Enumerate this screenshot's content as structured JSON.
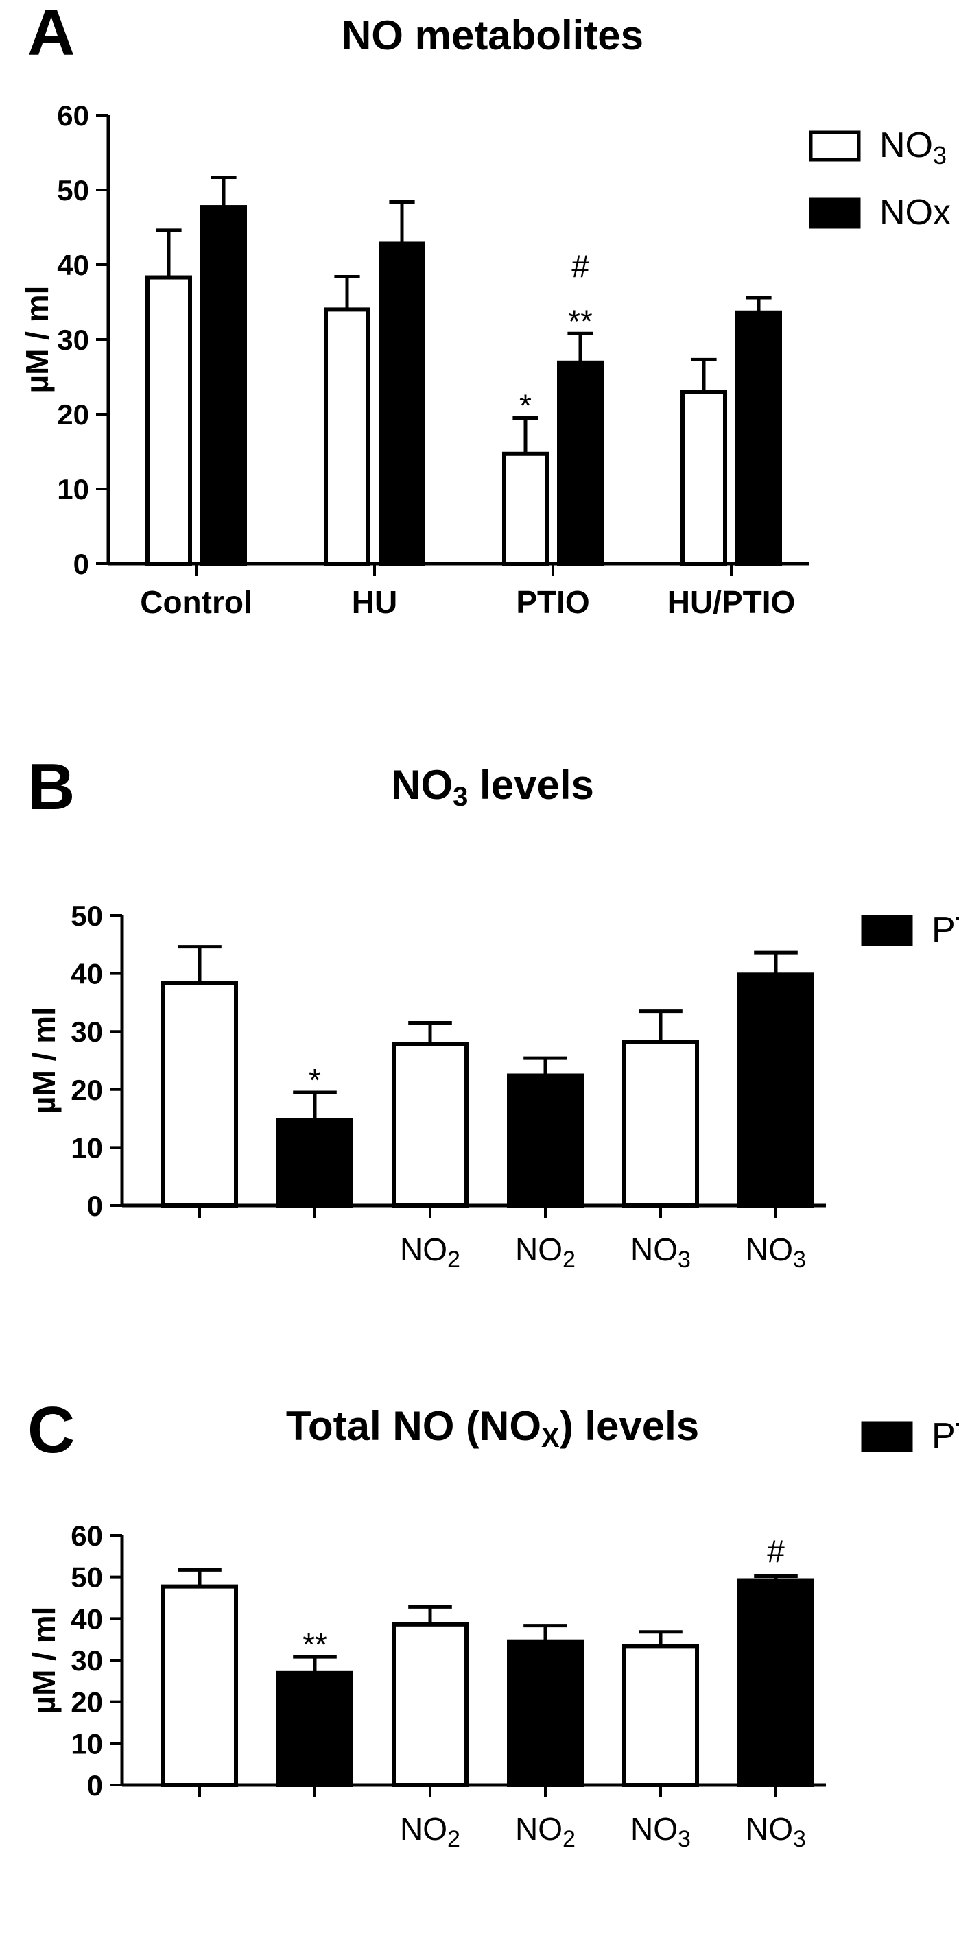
{
  "colors": {
    "filled": "#000000",
    "open": "#ffffff",
    "stroke": "#000000"
  },
  "chart_data": [
    {
      "type": "bar",
      "panel": "A",
      "title": "NO metabolites",
      "ylabel": "µM / ml",
      "ylim": [
        0,
        60
      ],
      "yticks": [
        0,
        10,
        20,
        30,
        40,
        50,
        60
      ],
      "categories": [
        "Control",
        "HU",
        "PTIO",
        "HU/PTIO"
      ],
      "series": [
        {
          "name": "NO",
          "name_sub": "3",
          "fill": "open",
          "values": [
            38.3,
            34.0,
            14.7,
            23.0
          ],
          "errors": [
            6.3,
            4.4,
            4.8,
            4.3
          ],
          "annotations": [
            "",
            "",
            "*",
            ""
          ]
        },
        {
          "name": "NOx",
          "name_sub": "",
          "fill": "filled",
          "values": [
            47.7,
            42.8,
            26.9,
            33.6
          ],
          "errors": [
            4.0,
            5.6,
            3.9,
            2.0
          ],
          "annotations": [
            "",
            "",
            "#|**",
            ""
          ]
        }
      ],
      "legend_position": "top-right"
    },
    {
      "type": "bar",
      "panel": "B",
      "title": "NO",
      "title_sub": "3",
      "title_suffix": " levels",
      "ylabel": "µM / ml",
      "ylim": [
        0,
        50
      ],
      "yticks": [
        0,
        10,
        20,
        30,
        40,
        50
      ],
      "bars": [
        {
          "label": "",
          "label_sub": "",
          "fill": "open",
          "value": 38.3,
          "error": 6.3,
          "annotation": ""
        },
        {
          "label": "",
          "label_sub": "",
          "fill": "filled",
          "value": 14.7,
          "error": 4.8,
          "annotation": "*"
        },
        {
          "label": "NO",
          "label_sub": "2",
          "fill": "open",
          "value": 27.8,
          "error": 3.7,
          "annotation": ""
        },
        {
          "label": "NO",
          "label_sub": "2",
          "fill": "filled",
          "value": 22.4,
          "error": 3.0,
          "annotation": ""
        },
        {
          "label": "NO",
          "label_sub": "3",
          "fill": "open",
          "value": 28.2,
          "error": 5.3,
          "annotation": ""
        },
        {
          "label": "NO",
          "label_sub": "3",
          "fill": "filled",
          "value": 39.8,
          "error": 3.8,
          "annotation": ""
        }
      ],
      "legend": [
        {
          "name": "PTIO",
          "fill": "filled"
        }
      ],
      "legend_position": "right"
    },
    {
      "type": "bar",
      "panel": "C",
      "title": "Total NO (NO",
      "title_sub": "X",
      "title_suffix": ") levels",
      "ylabel": "µM / ml",
      "ylim": [
        0,
        60
      ],
      "yticks": [
        0,
        10,
        20,
        30,
        40,
        50,
        60
      ],
      "bars": [
        {
          "label": "",
          "label_sub": "",
          "fill": "open",
          "value": 47.7,
          "error": 4.0,
          "annotation": ""
        },
        {
          "label": "",
          "label_sub": "",
          "fill": "filled",
          "value": 26.9,
          "error": 3.9,
          "annotation": "**"
        },
        {
          "label": "NO",
          "label_sub": "2",
          "fill": "open",
          "value": 38.6,
          "error": 4.2,
          "annotation": ""
        },
        {
          "label": "NO",
          "label_sub": "2",
          "fill": "filled",
          "value": 34.5,
          "error": 3.8,
          "annotation": ""
        },
        {
          "label": "NO",
          "label_sub": "3",
          "fill": "open",
          "value": 33.4,
          "error": 3.4,
          "annotation": ""
        },
        {
          "label": "NO",
          "label_sub": "3",
          "fill": "filled",
          "value": 49.2,
          "error": 1.0,
          "annotation": "#"
        }
      ],
      "legend": [
        {
          "name": "PTIO",
          "fill": "filled"
        }
      ],
      "legend_position": "right"
    }
  ]
}
